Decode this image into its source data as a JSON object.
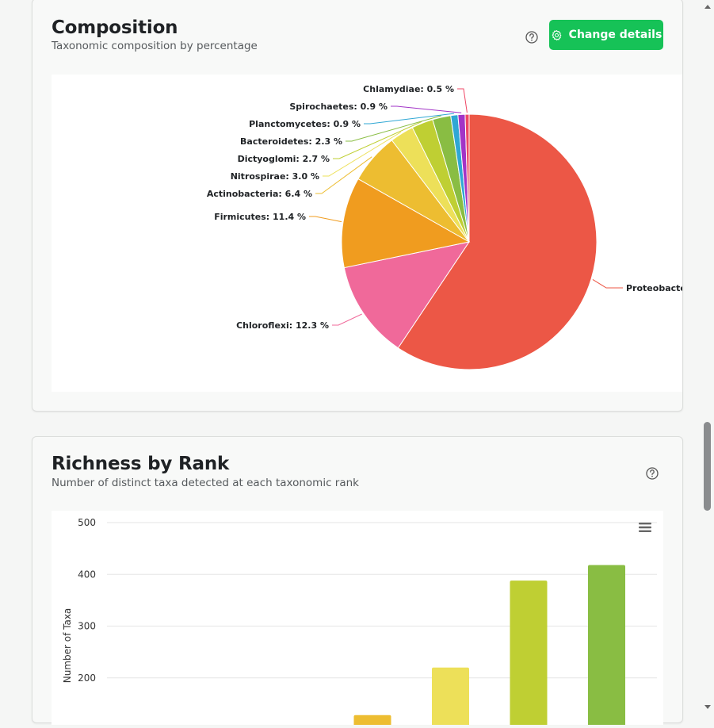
{
  "composition": {
    "title": "Composition",
    "subtitle": "Taxonomic composition by percentage",
    "change_button_label": "Change details",
    "help_icon": "question-circle-icon",
    "button_icon": "gear-icon"
  },
  "richness": {
    "title": "Richness by Rank",
    "subtitle": "Number of distinct taxa detected at each taxonomic rank",
    "help_icon": "question-circle-icon",
    "menu_icon": "hamburger-menu-icon"
  },
  "chart_data": [
    {
      "type": "pie",
      "title": "Taxonomic composition by percentage",
      "slices": [
        {
          "label": "Proteobacteria",
          "value": 59.1,
          "color": "#ec5746",
          "text": "Proteobacter"
        },
        {
          "label": "Chloroflexi",
          "value": 12.3,
          "color": "#f0699a",
          "text": "Chloroflexi: 12.3 %"
        },
        {
          "label": "Firmicutes",
          "value": 11.4,
          "color": "#f09c1f",
          "text": "Firmicutes: 11.4 %"
        },
        {
          "label": "Actinobacteria",
          "value": 6.4,
          "color": "#edbd31",
          "text": "Actinobacteria: 6.4 %"
        },
        {
          "label": "Nitrospirae",
          "value": 3.0,
          "color": "#ede059",
          "text": "Nitrospirae: 3.0 %"
        },
        {
          "label": "Dictyoglomi",
          "value": 2.7,
          "color": "#bfcf33",
          "text": "Dictyoglomi: 2.7 %"
        },
        {
          "label": "Bacteroidetes",
          "value": 2.3,
          "color": "#89bd43",
          "text": "Bacteroidetes: 2.3 %"
        },
        {
          "label": "Planctomycetes",
          "value": 0.9,
          "color": "#2fa7d4",
          "text": "Planctomycetes: 0.9 %"
        },
        {
          "label": "Spirochaetes",
          "value": 0.9,
          "color": "#a234c7",
          "text": "Spirochaetes: 0.9 %"
        },
        {
          "label": "Chlamydiae",
          "value": 0.5,
          "color": "#ef4765",
          "text": "Chlamydiae: 0.5 %"
        }
      ]
    },
    {
      "type": "bar",
      "title": "Number of distinct taxa detected at each taxonomic rank",
      "ylabel": "Number of Taxa",
      "ylim": [
        0,
        500
      ],
      "yticks": [
        "500",
        "400",
        "300",
        "200"
      ],
      "values": [
        null,
        null,
        null,
        128,
        220,
        388,
        418
      ],
      "colors": [
        "#ec5746",
        "#f09c1f",
        "#edbd31",
        "#edbd31",
        "#ede059",
        "#bfcf33",
        "#89bd43"
      ]
    }
  ]
}
